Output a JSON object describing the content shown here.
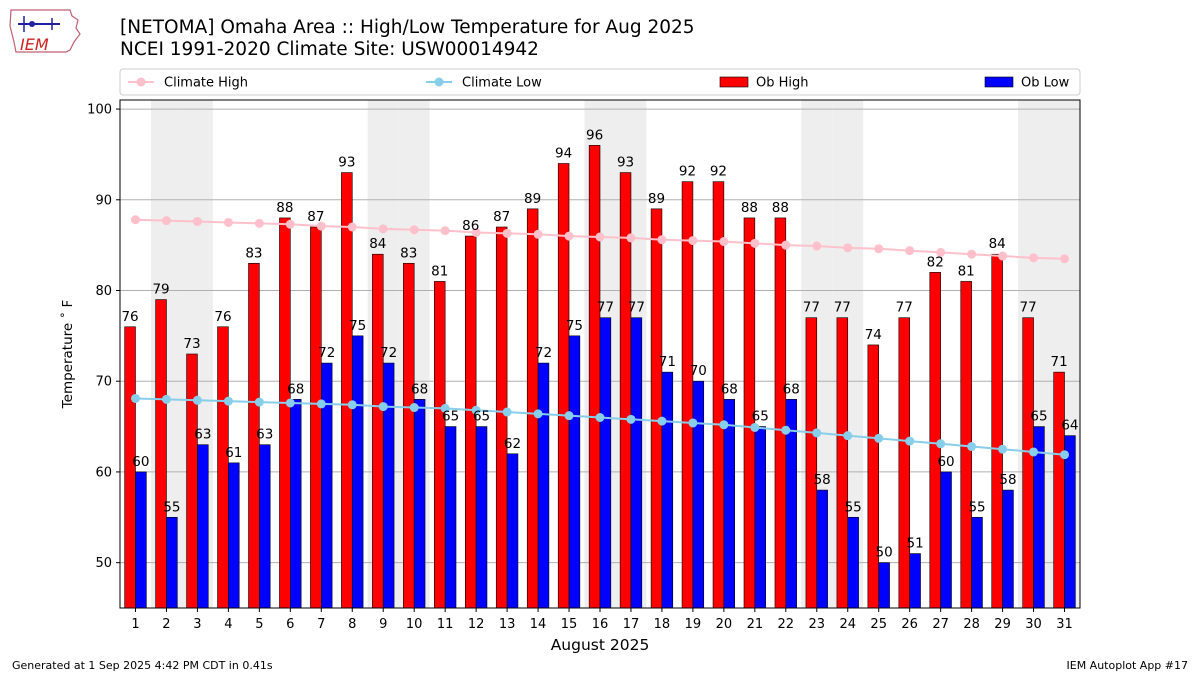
{
  "header": {
    "title_line1": "[NETOMA] Omaha Area :: High/Low Temperature for Aug 2025",
    "title_line2": "NCEI 1991-2020 Climate Site: USW00014942",
    "logo_text": "IEM"
  },
  "footer": {
    "generated": "Generated at 1 Sep 2025 4:42 PM CDT in 0.41s",
    "app": "IEM Autoplot App #17"
  },
  "colors": {
    "ob_high": "#ff0000",
    "ob_low": "#0000ff",
    "climate_high": "#ffc0cb",
    "climate_low": "#87ceeb",
    "weekend_shade": "#eeeeee",
    "grid": "#b0b0b0"
  },
  "chart_data": {
    "type": "bar",
    "title": "[NETOMA] Omaha Area :: High/Low Temperature for Aug 2025",
    "xlabel": "August 2025",
    "ylabel": "Temperature ˚ F",
    "ylim": [
      45,
      101
    ],
    "yticks": [
      50,
      60,
      70,
      80,
      90,
      100
    ],
    "grid": "horizontal",
    "legend_position": "top",
    "weekend_shaded_days": [
      2,
      3,
      9,
      10,
      16,
      17,
      23,
      24,
      30,
      31
    ],
    "categories": [
      1,
      2,
      3,
      4,
      5,
      6,
      7,
      8,
      9,
      10,
      11,
      12,
      13,
      14,
      15,
      16,
      17,
      18,
      19,
      20,
      21,
      22,
      23,
      24,
      25,
      26,
      27,
      28,
      29,
      30,
      31
    ],
    "series": [
      {
        "name": "Ob High",
        "kind": "bar",
        "values": [
          76,
          79,
          73,
          76,
          83,
          88,
          87,
          93,
          84,
          83,
          81,
          86,
          87,
          89,
          94,
          96,
          93,
          89,
          92,
          92,
          88,
          88,
          77,
          77,
          74,
          77,
          82,
          81,
          84,
          77,
          71
        ]
      },
      {
        "name": "Ob Low",
        "kind": "bar",
        "values": [
          60,
          55,
          63,
          61,
          63,
          68,
          72,
          75,
          72,
          68,
          65,
          65,
          62,
          72,
          75,
          77,
          77,
          71,
          70,
          68,
          65,
          68,
          58,
          55,
          50,
          51,
          60,
          55,
          58,
          65,
          64
        ]
      },
      {
        "name": "Climate High",
        "kind": "line",
        "values": [
          87.8,
          87.7,
          87.6,
          87.5,
          87.4,
          87.3,
          87.1,
          87.0,
          86.8,
          86.7,
          86.6,
          86.4,
          86.3,
          86.2,
          86.0,
          85.9,
          85.8,
          85.6,
          85.5,
          85.4,
          85.2,
          85.0,
          84.9,
          84.7,
          84.6,
          84.4,
          84.2,
          84.0,
          83.8,
          83.6,
          83.5
        ]
      },
      {
        "name": "Climate Low",
        "kind": "line",
        "values": [
          68.1,
          68.0,
          67.9,
          67.8,
          67.7,
          67.6,
          67.5,
          67.4,
          67.2,
          67.1,
          67.0,
          66.8,
          66.6,
          66.4,
          66.2,
          66.0,
          65.8,
          65.6,
          65.4,
          65.2,
          64.9,
          64.6,
          64.3,
          64.0,
          63.7,
          63.4,
          63.1,
          62.8,
          62.5,
          62.2,
          61.9
        ]
      }
    ]
  }
}
